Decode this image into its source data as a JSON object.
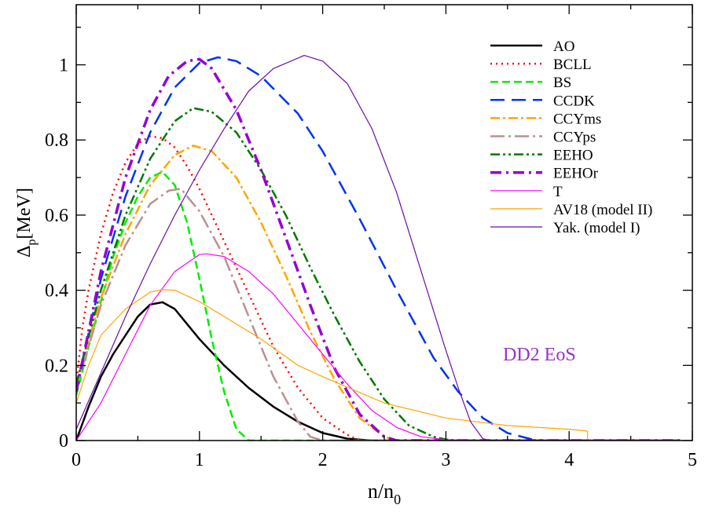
{
  "chart_data": {
    "type": "line",
    "xlim": [
      0,
      5
    ],
    "ylim": [
      0,
      1.16
    ],
    "xticks": [
      0,
      1,
      2,
      3,
      4,
      5
    ],
    "yticks": [
      0,
      0.2,
      0.4,
      0.6,
      0.8,
      1
    ],
    "xtick_labels": [
      "0",
      "1",
      "2",
      "3",
      "4",
      "5"
    ],
    "ytick_labels": [
      "0",
      "0.2",
      "0.4",
      "0.6",
      "0.8",
      "1"
    ],
    "xlabel": {
      "main": "n/n",
      "sub": "0"
    },
    "ylabel": {
      "main": "Δ",
      "sub": "p",
      "rest": "[MeV]"
    },
    "annotation": "DD2  EoS",
    "annotation_color": "#9932cc",
    "grid": false,
    "legend_position": "top-right",
    "series": [
      {
        "name": "AO",
        "color": "#000000",
        "dash": "",
        "width": 2.5,
        "x": [
          0,
          0.1,
          0.2,
          0.3,
          0.4,
          0.5,
          0.6,
          0.7,
          0.8,
          0.9,
          1.0,
          1.2,
          1.4,
          1.6,
          1.8,
          2.0,
          2.2,
          2.4,
          2.6,
          3.0,
          3.5,
          4.0,
          4.5,
          4.9
        ],
        "y": [
          0,
          0.09,
          0.17,
          0.23,
          0.28,
          0.33,
          0.362,
          0.368,
          0.35,
          0.31,
          0.27,
          0.2,
          0.14,
          0.09,
          0.05,
          0.02,
          0.005,
          0,
          0,
          0,
          0,
          0,
          0,
          0
        ]
      },
      {
        "name": "BCLL",
        "color": "#ff0000",
        "dash": "2,5",
        "width": 2.5,
        "x": [
          0,
          0.05,
          0.1,
          0.2,
          0.3,
          0.4,
          0.5,
          0.6,
          0.7,
          0.8,
          0.9,
          1.0,
          1.2,
          1.4,
          1.6,
          1.8,
          2.0,
          2.2,
          2.3,
          2.5,
          3.0,
          4.0,
          4.9
        ],
        "y": [
          0.15,
          0.3,
          0.4,
          0.55,
          0.66,
          0.74,
          0.79,
          0.81,
          0.805,
          0.78,
          0.73,
          0.67,
          0.53,
          0.39,
          0.25,
          0.14,
          0.06,
          0.015,
          0,
          0,
          0,
          0,
          0
        ]
      },
      {
        "name": "BS",
        "color": "#00ee00",
        "dash": "10,5",
        "width": 2.5,
        "x": [
          0,
          0.1,
          0.2,
          0.3,
          0.4,
          0.5,
          0.6,
          0.7,
          0.8,
          0.9,
          1.0,
          1.1,
          1.2,
          1.3,
          1.4,
          1.5,
          2.0,
          3.0,
          4.9
        ],
        "y": [
          0.12,
          0.25,
          0.37,
          0.49,
          0.58,
          0.65,
          0.7,
          0.715,
          0.68,
          0.58,
          0.43,
          0.27,
          0.13,
          0.03,
          0,
          0,
          0,
          0,
          0
        ]
      },
      {
        "name": "CCDK",
        "color": "#0033ee",
        "dash": "18,9",
        "width": 2.5,
        "x": [
          0,
          0.2,
          0.4,
          0.6,
          0.8,
          1.0,
          1.15,
          1.3,
          1.5,
          1.8,
          2.0,
          2.3,
          2.6,
          2.9,
          3.1,
          3.3,
          3.5,
          3.7,
          3.8,
          4.9
        ],
        "y": [
          0.14,
          0.43,
          0.65,
          0.82,
          0.94,
          1.005,
          1.02,
          1.01,
          0.97,
          0.87,
          0.77,
          0.59,
          0.4,
          0.22,
          0.13,
          0.06,
          0.02,
          0.003,
          0,
          0
        ]
      },
      {
        "name": "CCYms",
        "color": "#ffa500",
        "dash": "12,4,3,4",
        "width": 2.5,
        "x": [
          0,
          0.2,
          0.4,
          0.6,
          0.8,
          0.95,
          1.1,
          1.3,
          1.5,
          1.7,
          1.9,
          2.1,
          2.3,
          2.5,
          2.6,
          3.0,
          4.9
        ],
        "y": [
          0.15,
          0.38,
          0.55,
          0.68,
          0.76,
          0.785,
          0.77,
          0.7,
          0.58,
          0.44,
          0.29,
          0.16,
          0.06,
          0.01,
          0,
          0,
          0
        ]
      },
      {
        "name": "CCYps",
        "color": "#bc8f8f",
        "dash": "18,5,3,5",
        "width": 2.5,
        "x": [
          0,
          0.2,
          0.4,
          0.6,
          0.75,
          0.85,
          1.0,
          1.2,
          1.4,
          1.6,
          1.8,
          1.9,
          2.0,
          3.0,
          4.9
        ],
        "y": [
          0.14,
          0.36,
          0.52,
          0.63,
          0.665,
          0.67,
          0.61,
          0.49,
          0.33,
          0.17,
          0.05,
          0.01,
          0,
          0,
          0
        ]
      },
      {
        "name": "EEHO",
        "color": "#007700",
        "dash": "12,4,3,4,3,4",
        "width": 2.5,
        "x": [
          0,
          0.2,
          0.4,
          0.6,
          0.8,
          0.95,
          1.1,
          1.3,
          1.5,
          1.7,
          1.9,
          2.1,
          2.3,
          2.5,
          2.7,
          2.9,
          3.0,
          3.1,
          3.5,
          4.9
        ],
        "y": [
          0.15,
          0.4,
          0.6,
          0.75,
          0.85,
          0.885,
          0.875,
          0.82,
          0.72,
          0.6,
          0.46,
          0.33,
          0.21,
          0.11,
          0.04,
          0.01,
          0.003,
          0,
          0,
          0
        ]
      },
      {
        "name": "EEHOr",
        "color": "#9400d3",
        "dash": "14,6,3,6",
        "width": 3.5,
        "x": [
          0,
          0.2,
          0.4,
          0.6,
          0.75,
          0.9,
          1.0,
          1.1,
          1.3,
          1.5,
          1.7,
          1.9,
          2.1,
          2.3,
          2.5,
          2.6,
          3.0,
          4.9
        ],
        "y": [
          0.13,
          0.45,
          0.7,
          0.88,
          0.97,
          1.01,
          1.015,
          0.99,
          0.88,
          0.72,
          0.54,
          0.36,
          0.19,
          0.07,
          0.01,
          0,
          0,
          0
        ]
      },
      {
        "name": "T",
        "color": "#ff00ff",
        "dash": "",
        "width": 1.2,
        "x": [
          0,
          0.2,
          0.4,
          0.6,
          0.8,
          1.0,
          1.05,
          1.2,
          1.4,
          1.6,
          1.8,
          2.0,
          2.2,
          2.4,
          2.6,
          2.8,
          3.0,
          3.2,
          3.5,
          4.9
        ],
        "y": [
          0,
          0.1,
          0.23,
          0.36,
          0.45,
          0.495,
          0.497,
          0.49,
          0.45,
          0.39,
          0.31,
          0.23,
          0.15,
          0.08,
          0.035,
          0.01,
          0.002,
          0,
          0,
          0
        ]
      },
      {
        "name": "AV18 (model II)",
        "color": "#ffa500",
        "dash": "",
        "width": 1.2,
        "x": [
          0,
          0.1,
          0.2,
          0.4,
          0.6,
          0.7,
          0.8,
          1.0,
          1.2,
          1.5,
          1.8,
          2.0,
          2.5,
          3.0,
          3.5,
          4.0,
          4.15,
          4.15,
          4.9
        ],
        "y": [
          0.1,
          0.2,
          0.28,
          0.35,
          0.395,
          0.402,
          0.4,
          0.37,
          0.33,
          0.27,
          0.2,
          0.17,
          0.1,
          0.06,
          0.04,
          0.03,
          0.025,
          0,
          0
        ]
      },
      {
        "name": "Yak. (model I)",
        "color": "#6a0dad",
        "dash": "",
        "width": 1.2,
        "x": [
          0,
          0.2,
          0.4,
          0.6,
          0.8,
          1.0,
          1.2,
          1.4,
          1.6,
          1.85,
          2.0,
          2.2,
          2.4,
          2.6,
          2.8,
          3.0,
          3.1,
          3.2,
          3.3,
          3.35,
          4.9
        ],
        "y": [
          0.03,
          0.18,
          0.33,
          0.47,
          0.6,
          0.72,
          0.83,
          0.93,
          0.99,
          1.025,
          1.01,
          0.95,
          0.83,
          0.66,
          0.45,
          0.24,
          0.14,
          0.05,
          0.005,
          0,
          0
        ]
      }
    ]
  }
}
